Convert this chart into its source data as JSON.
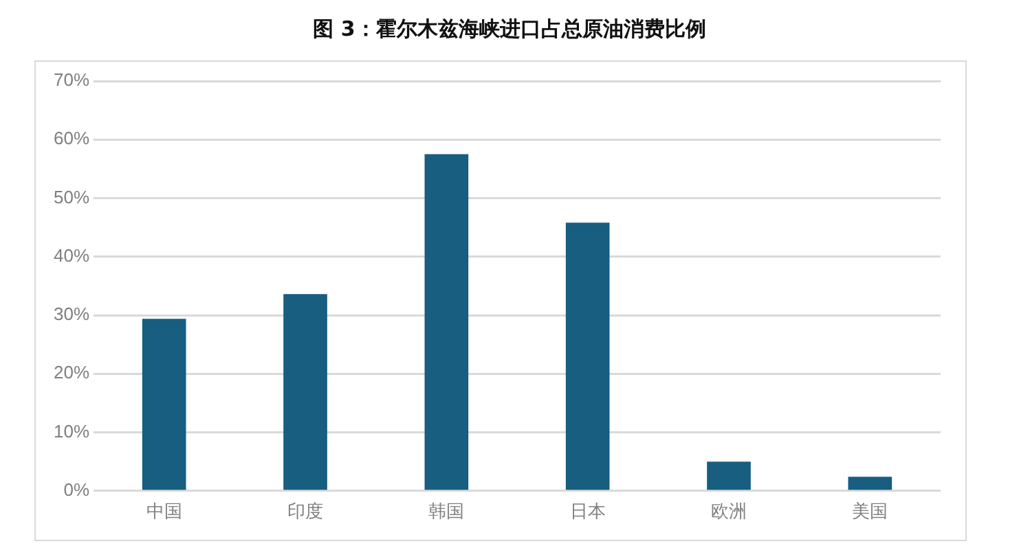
{
  "chart_data": {
    "type": "bar",
    "title": "图 3：霍尔木兹海峡进口占总原油消费比例",
    "categories": [
      "中国",
      "印度",
      "韩国",
      "日本",
      "欧洲",
      "美国"
    ],
    "values": [
      29.4,
      33.6,
      57.5,
      45.8,
      5.0,
      2.4
    ],
    "color": "#175e80",
    "ylim": [
      0,
      70
    ],
    "yticks": [
      {
        "value": 0,
        "label": "0%"
      },
      {
        "value": 10,
        "label": "10%"
      },
      {
        "value": 20,
        "label": "20%"
      },
      {
        "value": 30,
        "label": "30%"
      },
      {
        "value": 40,
        "label": "40%"
      },
      {
        "value": 50,
        "label": "50%"
      },
      {
        "value": 60,
        "label": "60%"
      },
      {
        "value": 70,
        "label": "70%"
      }
    ],
    "grid": "y",
    "legend": false
  }
}
